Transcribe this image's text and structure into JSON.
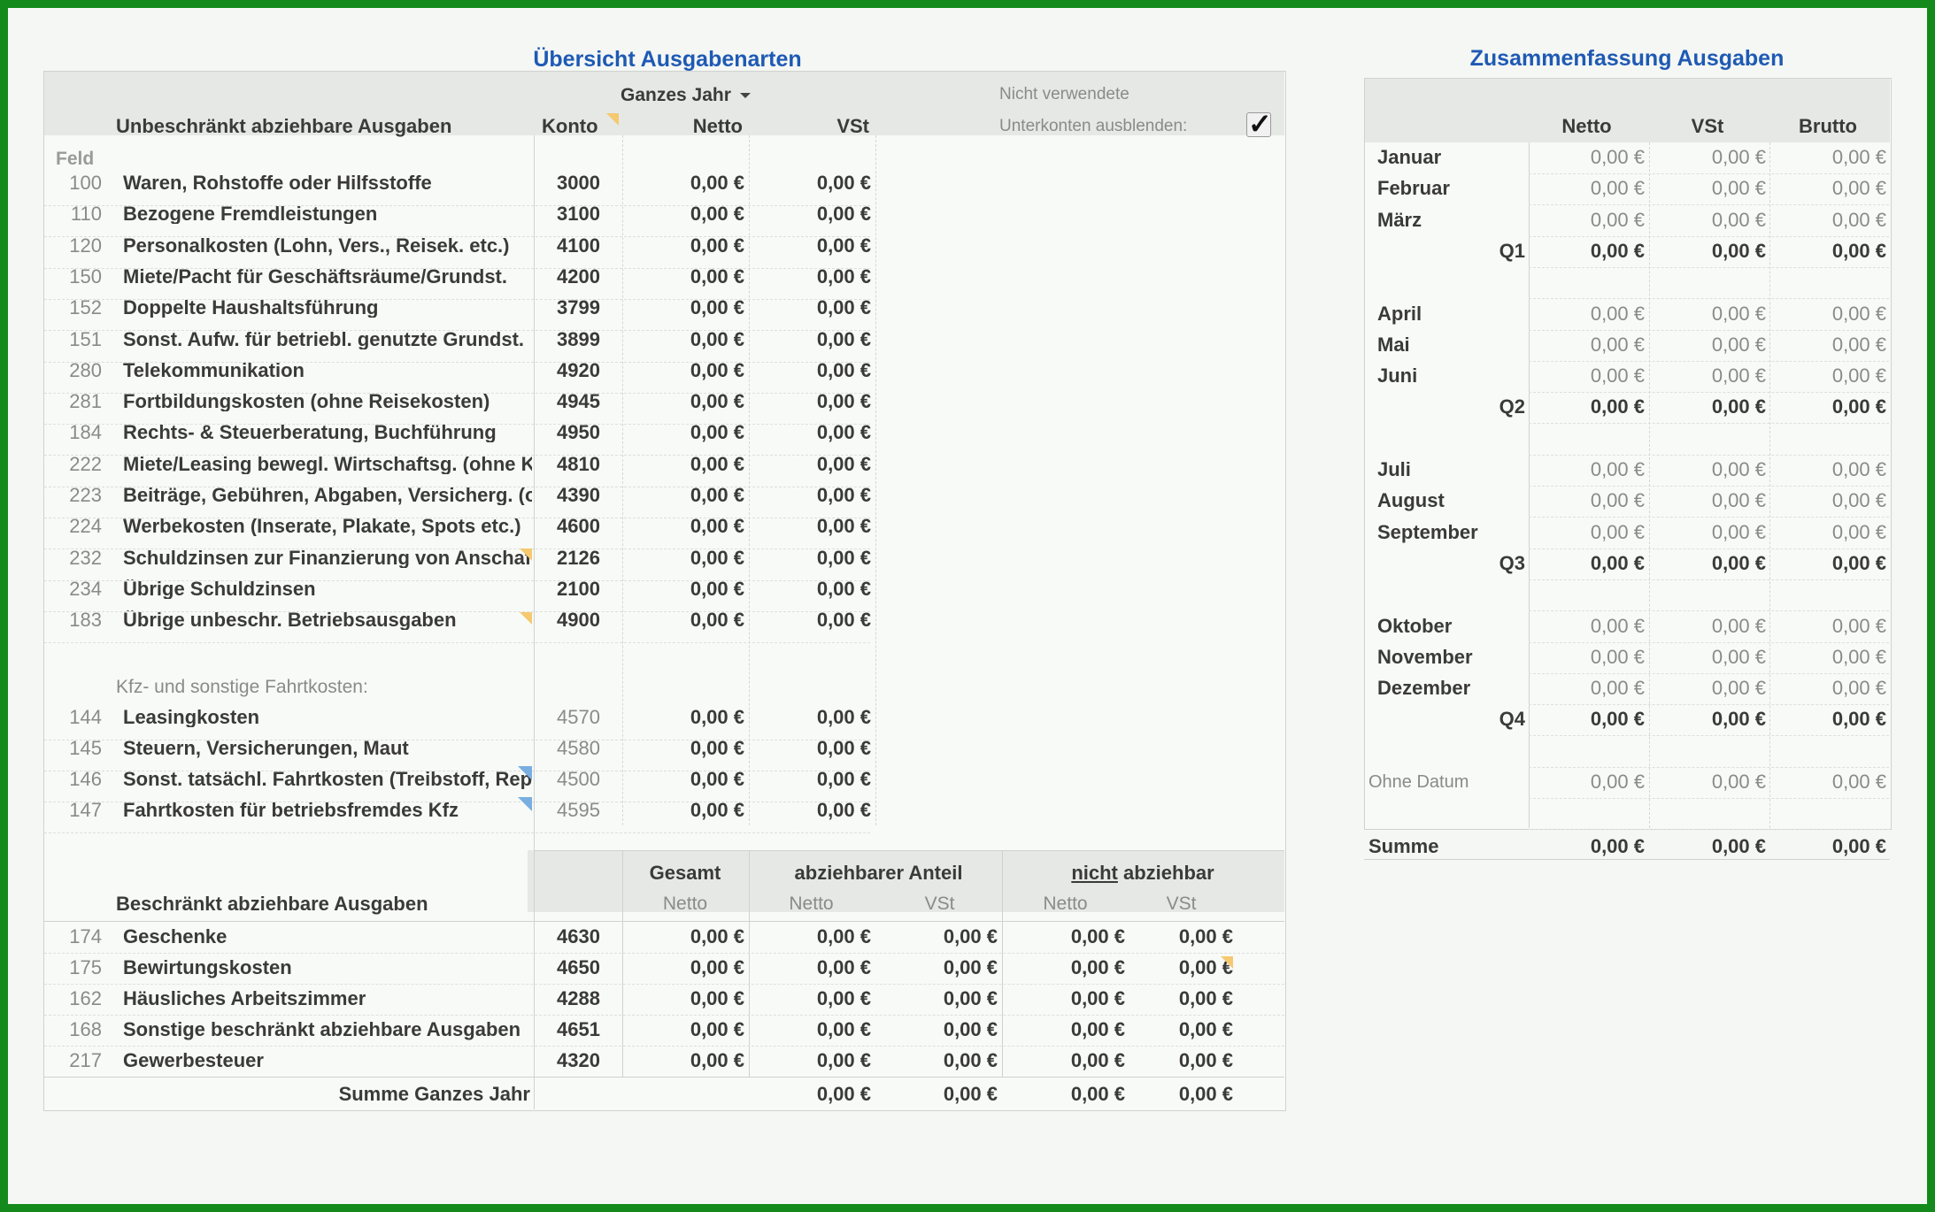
{
  "left_title": "Übersicht Ausgabenarten",
  "right_title": "Zusammenfassung Ausgaben",
  "period_select": "Ganzes Jahr",
  "section1_header": "Unbeschränkt abziehbare Ausgaben",
  "col_konto": "Konto",
  "col_netto": "Netto",
  "col_vst": "VSt",
  "hide_label_1": "Nicht verwendete",
  "hide_label_2": "Unterkonten ausblenden:",
  "hide_checked": true,
  "feld_label": "Feld",
  "rows1": [
    {
      "feld": "100",
      "name": "Waren, Rohstoffe oder Hilfsstoffe",
      "konto": "3000",
      "netto": "0,00 €",
      "vst": "0,00 €"
    },
    {
      "feld": "110",
      "name": "Bezogene Fremdleistungen",
      "konto": "3100",
      "netto": "0,00 €",
      "vst": "0,00 €"
    },
    {
      "feld": "120",
      "name": "Personalkosten (Lohn, Vers., Reisek. etc.)",
      "konto": "4100",
      "netto": "0,00 €",
      "vst": "0,00 €"
    },
    {
      "feld": "150",
      "name": "Miete/Pacht für Geschäftsräume/Grundst.",
      "konto": "4200",
      "netto": "0,00 €",
      "vst": "0,00 €"
    },
    {
      "feld": "152",
      "name": "Doppelte Haushaltsführung",
      "konto": "3799",
      "netto": "0,00 €",
      "vst": "0,00 €"
    },
    {
      "feld": "151",
      "name": "Sonst. Aufw. für betriebl. genutzte Grundst.",
      "konto": "3899",
      "netto": "0,00 €",
      "vst": "0,00 €"
    },
    {
      "feld": "280",
      "name": "Telekommunikation",
      "konto": "4920",
      "netto": "0,00 €",
      "vst": "0,00 €"
    },
    {
      "feld": "281",
      "name": "Fortbildungskosten (ohne Reisekosten)",
      "konto": "4945",
      "netto": "0,00 €",
      "vst": "0,00 €"
    },
    {
      "feld": "184",
      "name": "Rechts- & Steuerberatung, Buchführung",
      "konto": "4950",
      "netto": "0,00 €",
      "vst": "0,00 €"
    },
    {
      "feld": "222",
      "name": "Miete/Leasing bewegl. Wirtschaftsg. (ohne K",
      "konto": "4810",
      "netto": "0,00 €",
      "vst": "0,00 €"
    },
    {
      "feld": "223",
      "name": "Beiträge, Gebühren, Abgaben, Versicherg. (o",
      "konto": "4390",
      "netto": "0,00 €",
      "vst": "0,00 €"
    },
    {
      "feld": "224",
      "name": "Werbekosten (Inserate, Plakate, Spots etc.)",
      "konto": "4600",
      "netto": "0,00 €",
      "vst": "0,00 €"
    },
    {
      "feld": "232",
      "name": "Schuldzinsen zur Finanzierung von Anschaf",
      "konto": "2126",
      "netto": "0,00 €",
      "vst": "0,00 €"
    },
    {
      "feld": "234",
      "name": "Übrige Schuldzinsen",
      "konto": "2100",
      "netto": "0,00 €",
      "vst": "0,00 €"
    },
    {
      "feld": "183",
      "name": "Übrige unbeschr. Betriebsausgaben",
      "konto": "4900",
      "netto": "0,00 €",
      "vst": "0,00 €"
    }
  ],
  "kfz_header": "Kfz- und sonstige Fahrtkosten:",
  "rows_kfz": [
    {
      "feld": "144",
      "name": "Leasingkosten",
      "konto": "4570",
      "netto": "0,00 €",
      "vst": "0,00 €"
    },
    {
      "feld": "145",
      "name": "Steuern, Versicherungen, Maut",
      "konto": "4580",
      "netto": "0,00 €",
      "vst": "0,00 €"
    },
    {
      "feld": "146",
      "name": "Sonst. tatsächl. Fahrtkosten (Treibstoff, Repa",
      "konto": "4500",
      "netto": "0,00 €",
      "vst": "0,00 €"
    },
    {
      "feld": "147",
      "name": "Fahrtkosten für betriebsfremdes Kfz",
      "konto": "4595",
      "netto": "0,00 €",
      "vst": "0,00 €"
    }
  ],
  "section2_header": "Beschränkt abziehbare Ausgaben",
  "s2_gesamt": "Gesamt",
  "s2_abziehbar": "abziehbarer Anteil",
  "s2_nicht": "nicht",
  "s2_nicht_rest": " abziehbar",
  "s2_netto": "Netto",
  "s2_vst": "VSt",
  "rows2": [
    {
      "feld": "174",
      "name": "Geschenke",
      "konto": "4630",
      "gesamt": "0,00 €",
      "a_netto": "0,00 €",
      "a_vst": "0,00 €",
      "n_netto": "0,00 €",
      "n_vst": "0,00 €"
    },
    {
      "feld": "175",
      "name": "Bewirtungskosten",
      "konto": "4650",
      "gesamt": "0,00 €",
      "a_netto": "0,00 €",
      "a_vst": "0,00 €",
      "n_netto": "0,00 €",
      "n_vst": "0,00 €"
    },
    {
      "feld": "162",
      "name": "Häusliches Arbeitszimmer",
      "konto": "4288",
      "gesamt": "0,00 €",
      "a_netto": "0,00 €",
      "a_vst": "0,00 €",
      "n_netto": "0,00 €",
      "n_vst": "0,00 €"
    },
    {
      "feld": "168",
      "name": "Sonstige beschränkt abziehbare Ausgaben",
      "konto": "4651",
      "gesamt": "0,00 €",
      "a_netto": "0,00 €",
      "a_vst": "0,00 €",
      "n_netto": "0,00 €",
      "n_vst": "0,00 €"
    },
    {
      "feld": "217",
      "name": "Gewerbesteuer",
      "konto": "4320",
      "gesamt": "0,00 €",
      "a_netto": "0,00 €",
      "a_vst": "0,00 €",
      "n_netto": "0,00 €",
      "n_vst": "0,00 €"
    }
  ],
  "sum_label": "Summe Ganzes Jahr",
  "sum_values": [
    "0,00 €",
    "0,00 €",
    "0,00 €",
    "0,00 €"
  ],
  "summary_cols": [
    "Netto",
    "VSt",
    "Brutto"
  ],
  "summary_rows": [
    {
      "label": "Januar",
      "type": "month",
      "netto": "0,00 €",
      "vst": "0,00 €",
      "brutto": "0,00 €"
    },
    {
      "label": "Februar",
      "type": "month",
      "netto": "0,00 €",
      "vst": "0,00 €",
      "brutto": "0,00 €"
    },
    {
      "label": "März",
      "type": "month",
      "netto": "0,00 €",
      "vst": "0,00 €",
      "brutto": "0,00 €"
    },
    {
      "label": "Q1",
      "type": "quarter",
      "netto": "0,00 €",
      "vst": "0,00 €",
      "brutto": "0,00 €"
    },
    {
      "label": "",
      "type": "blank"
    },
    {
      "label": "April",
      "type": "month",
      "netto": "0,00 €",
      "vst": "0,00 €",
      "brutto": "0,00 €"
    },
    {
      "label": "Mai",
      "type": "month",
      "netto": "0,00 €",
      "vst": "0,00 €",
      "brutto": "0,00 €"
    },
    {
      "label": "Juni",
      "type": "month",
      "netto": "0,00 €",
      "vst": "0,00 €",
      "brutto": "0,00 €"
    },
    {
      "label": "Q2",
      "type": "quarter",
      "netto": "0,00 €",
      "vst": "0,00 €",
      "brutto": "0,00 €"
    },
    {
      "label": "",
      "type": "blank"
    },
    {
      "label": "Juli",
      "type": "month",
      "netto": "0,00 €",
      "vst": "0,00 €",
      "brutto": "0,00 €"
    },
    {
      "label": "August",
      "type": "month",
      "netto": "0,00 €",
      "vst": "0,00 €",
      "brutto": "0,00 €"
    },
    {
      "label": "September",
      "type": "month",
      "netto": "0,00 €",
      "vst": "0,00 €",
      "brutto": "0,00 €"
    },
    {
      "label": "Q3",
      "type": "quarter",
      "netto": "0,00 €",
      "vst": "0,00 €",
      "brutto": "0,00 €"
    },
    {
      "label": "",
      "type": "blank"
    },
    {
      "label": "Oktober",
      "type": "month",
      "netto": "0,00 €",
      "vst": "0,00 €",
      "brutto": "0,00 €"
    },
    {
      "label": "November",
      "type": "month",
      "netto": "0,00 €",
      "vst": "0,00 €",
      "brutto": "0,00 €"
    },
    {
      "label": "Dezember",
      "type": "month",
      "netto": "0,00 €",
      "vst": "0,00 €",
      "brutto": "0,00 €"
    },
    {
      "label": "Q4",
      "type": "quarter",
      "netto": "0,00 €",
      "vst": "0,00 €",
      "brutto": "0,00 €"
    },
    {
      "label": "",
      "type": "blank"
    },
    {
      "label": "Ohne Datum",
      "type": "nodate",
      "netto": "0,00 €",
      "vst": "0,00 €",
      "brutto": "0,00 €"
    },
    {
      "label": "",
      "type": "blank"
    }
  ],
  "summary_total": {
    "label": "Summe",
    "netto": "0,00 €",
    "vst": "0,00 €",
    "brutto": "0,00 €"
  }
}
